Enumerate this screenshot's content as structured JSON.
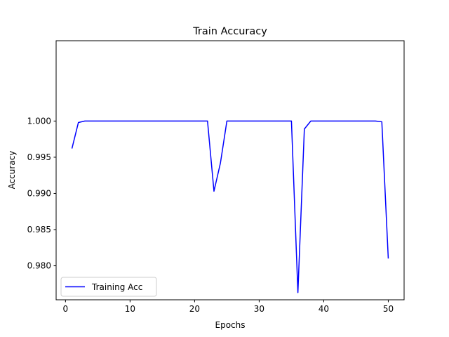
{
  "chart_data": {
    "type": "line",
    "title": "Train Accuracy",
    "xlabel": "Epochs",
    "ylabel": "Accuracy",
    "xlim": [
      -1.45,
      52.45
    ],
    "ylim": [
      0.9753,
      1.0111
    ],
    "x_ticks": [
      0,
      10,
      20,
      30,
      40,
      50
    ],
    "x_tick_labels": [
      "0",
      "10",
      "20",
      "30",
      "40",
      "50"
    ],
    "y_ticks": [
      0.98,
      0.985,
      0.99,
      0.995,
      1.0
    ],
    "y_tick_labels": [
      "0.980",
      "0.985",
      "0.990",
      "0.995",
      "1.000"
    ],
    "grid": false,
    "legend_position": "lower-left",
    "series": [
      {
        "name": "Training Acc",
        "color": "#0000ff",
        "x": [
          1,
          2,
          3,
          4,
          5,
          6,
          7,
          8,
          9,
          10,
          11,
          12,
          13,
          14,
          15,
          16,
          17,
          18,
          19,
          20,
          21,
          22,
          23,
          24,
          25,
          26,
          27,
          28,
          29,
          30,
          31,
          32,
          33,
          34,
          35,
          36,
          37,
          38,
          39,
          40,
          41,
          42,
          43,
          44,
          45,
          46,
          47,
          48,
          49,
          50
        ],
        "values": [
          0.9962,
          0.9998,
          1.0,
          1.0,
          1.0,
          1.0,
          1.0,
          1.0,
          1.0,
          1.0,
          1.0,
          1.0,
          1.0,
          1.0,
          1.0,
          1.0,
          1.0,
          1.0,
          1.0,
          1.0,
          1.0,
          1.0,
          0.9903,
          0.9942,
          1.0,
          1.0,
          1.0,
          1.0,
          1.0,
          1.0,
          1.0,
          1.0,
          1.0,
          1.0,
          1.0,
          0.9763,
          0.9989,
          1.0,
          1.0,
          1.0,
          1.0,
          1.0,
          1.0,
          1.0,
          1.0,
          1.0,
          1.0,
          1.0,
          0.9999,
          0.981
        ]
      }
    ]
  }
}
